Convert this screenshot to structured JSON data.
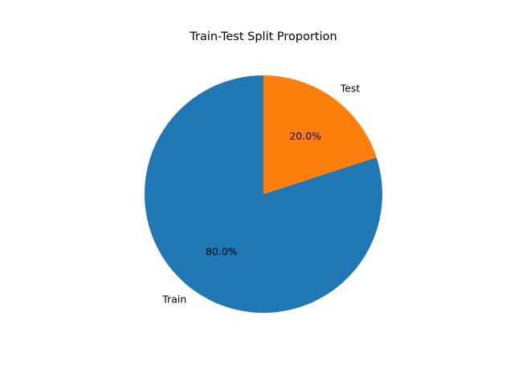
{
  "chart_data": {
    "type": "pie",
    "title": "Train-Test Split Proportion",
    "slices": [
      {
        "label": "Train",
        "value": 80.0,
        "percent_label": "80.0%",
        "color": "#1f77b4"
      },
      {
        "label": "Test",
        "value": 20.0,
        "percent_label": "20.0%",
        "color": "#ff7f0e"
      }
    ],
    "start_angle": "90° (top), counter-clockwise",
    "legend": "none"
  }
}
